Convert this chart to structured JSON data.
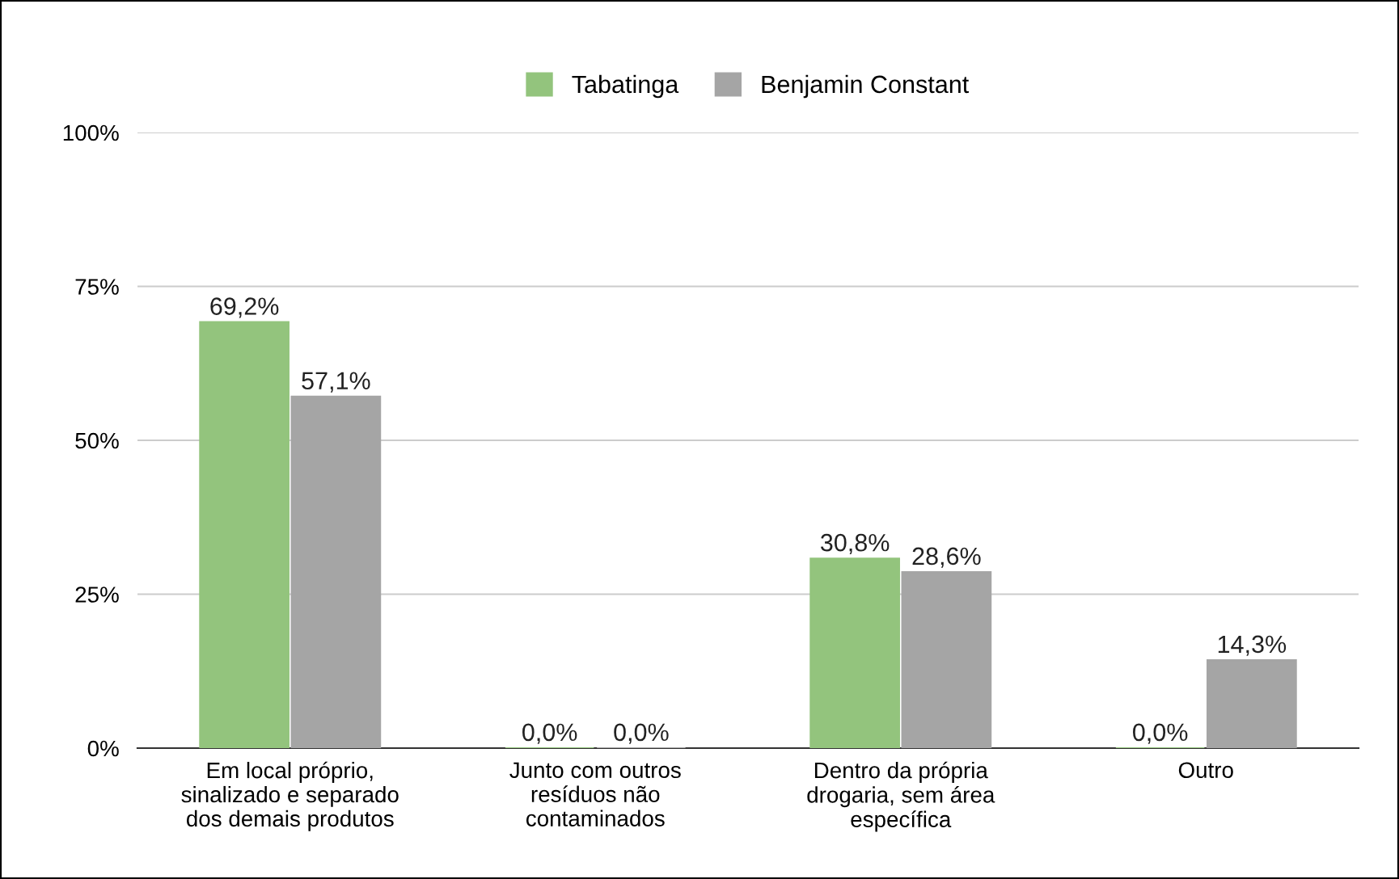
{
  "chart_data": {
    "type": "bar",
    "categories": [
      "Em local próprio,\nsinalizado e separado\ndos demais produtos",
      "Junto com outros\nresíduos não\ncontaminados",
      "Dentro da própria\ndrogaria, sem área\nespecífica",
      "Outro"
    ],
    "series": [
      {
        "name": "Tabatinga",
        "color": "#93c47d",
        "values": [
          69.2,
          0,
          30.8,
          0
        ],
        "value_labels": [
          "69,2%",
          "0,0%",
          "30,8%",
          "0,0%"
        ]
      },
      {
        "name": "Benjamin Constant",
        "color": "#a5a5a5",
        "values": [
          57.1,
          0,
          28.6,
          14.3
        ],
        "value_labels": [
          "57,1%",
          "0,0%",
          "28,6%",
          "14,3%"
        ]
      }
    ],
    "ylim": [
      0,
      100
    ],
    "yticks": [
      {
        "value": 0,
        "label": "0%"
      },
      {
        "value": 25,
        "label": "25%"
      },
      {
        "value": 50,
        "label": "50%"
      },
      {
        "value": 75,
        "label": "75%"
      },
      {
        "value": 100,
        "label": "100%"
      }
    ],
    "grid": "y",
    "legend": "top"
  }
}
